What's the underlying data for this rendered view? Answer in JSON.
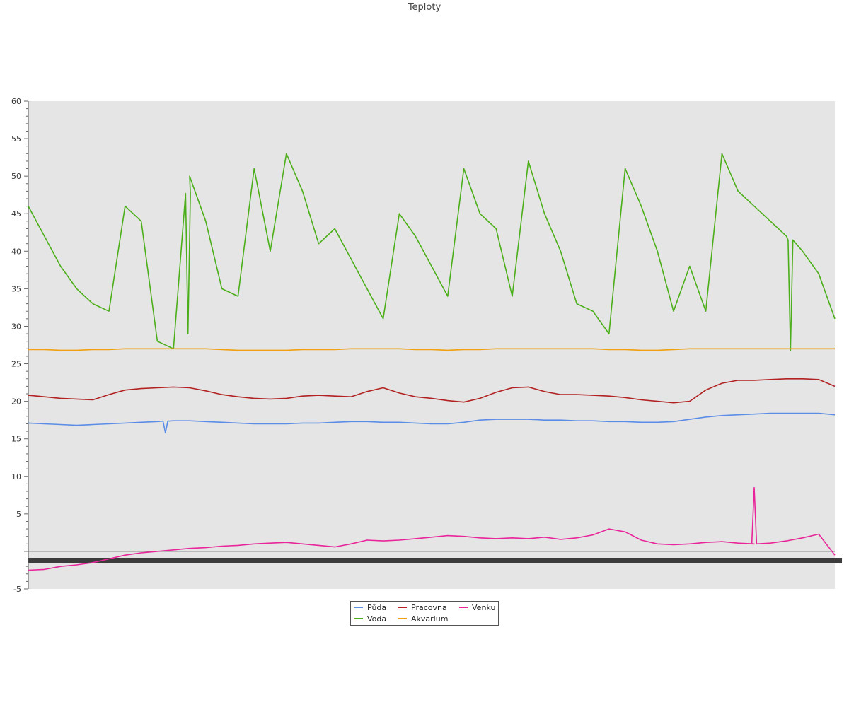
{
  "chart_data": {
    "type": "line",
    "title": "Teploty",
    "ylim": [
      -5,
      60
    ],
    "yticks": [
      -5,
      5,
      10,
      15,
      20,
      25,
      30,
      35,
      40,
      45,
      50,
      55,
      60
    ],
    "grid": false,
    "legend_placement": "bottom-center",
    "background_color": "#e5e5e5",
    "x": [
      0,
      2,
      4,
      6,
      8,
      10,
      12,
      14,
      16,
      18,
      20,
      22,
      24,
      26,
      28,
      30,
      32,
      34,
      36,
      38,
      40,
      42,
      44,
      46,
      48,
      50,
      52,
      54,
      56,
      58,
      60,
      62,
      64,
      66,
      68,
      70,
      72,
      74,
      76,
      78,
      80,
      82,
      84,
      86,
      88,
      90,
      92,
      94,
      96,
      98,
      100
    ],
    "series": [
      {
        "name": "Půda",
        "color": "#5b8de6",
        "values": [
          17.1,
          17.0,
          16.9,
          16.8,
          16.9,
          17.0,
          17.1,
          17.2,
          17.3,
          17.4,
          17.4,
          17.3,
          17.2,
          17.1,
          17.0,
          17.0,
          17.0,
          17.1,
          17.1,
          17.2,
          17.3,
          17.3,
          17.2,
          17.2,
          17.1,
          17.0,
          17.0,
          17.2,
          17.5,
          17.6,
          17.6,
          17.6,
          17.5,
          17.5,
          17.4,
          17.4,
          17.3,
          17.3,
          17.2,
          17.2,
          17.3,
          17.6,
          17.9,
          18.1,
          18.2,
          18.3,
          18.4,
          18.4,
          18.4,
          18.4,
          18.2
        ]
      },
      {
        "name": "Voda",
        "color": "#4caf1a",
        "values": [
          46,
          42,
          38,
          35,
          33,
          32,
          46,
          44,
          28,
          27,
          50,
          44,
          35,
          34,
          51,
          40,
          53,
          48,
          41,
          43,
          39,
          35,
          31,
          45,
          42,
          38,
          34,
          51,
          45,
          43,
          34,
          52,
          45,
          40,
          33,
          32,
          29,
          51,
          46,
          40,
          32,
          38,
          32,
          53,
          48,
          46,
          44,
          42,
          40,
          37,
          31
        ]
      },
      {
        "name": "Pracovna",
        "color": "#b22222",
        "values": [
          20.8,
          20.6,
          20.4,
          20.3,
          20.2,
          20.9,
          21.5,
          21.7,
          21.8,
          21.9,
          21.8,
          21.4,
          20.9,
          20.6,
          20.4,
          20.3,
          20.4,
          20.7,
          20.8,
          20.7,
          20.6,
          21.3,
          21.8,
          21.1,
          20.6,
          20.4,
          20.1,
          19.9,
          20.4,
          21.2,
          21.8,
          21.9,
          21.3,
          20.9,
          20.9,
          20.8,
          20.7,
          20.5,
          20.2,
          20.0,
          19.8,
          20.0,
          21.5,
          22.4,
          22.8,
          22.8,
          22.9,
          23.0,
          23.0,
          22.9,
          22.0
        ]
      },
      {
        "name": "Akvarium",
        "color": "#f0a010",
        "values": [
          26.9,
          26.9,
          26.8,
          26.8,
          26.9,
          26.9,
          27.0,
          27.0,
          27.0,
          27.0,
          27.0,
          27.0,
          26.9,
          26.8,
          26.8,
          26.8,
          26.8,
          26.9,
          26.9,
          26.9,
          27.0,
          27.0,
          27.0,
          27.0,
          26.9,
          26.9,
          26.8,
          26.9,
          26.9,
          27.0,
          27.0,
          27.0,
          27.0,
          27.0,
          27.0,
          27.0,
          26.9,
          26.9,
          26.8,
          26.8,
          26.9,
          27.0,
          27.0,
          27.0,
          27.0,
          27.0,
          27.0,
          27.0,
          27.0,
          27.0,
          27.0
        ]
      },
      {
        "name": "Venku",
        "color": "#e8259a",
        "values": [
          -2.5,
          -2.4,
          -2.0,
          -1.8,
          -1.5,
          -1.0,
          -0.5,
          -0.2,
          0.0,
          0.2,
          0.4,
          0.5,
          0.7,
          0.8,
          1.0,
          1.1,
          1.2,
          1.0,
          0.8,
          0.6,
          1.0,
          1.5,
          1.4,
          1.5,
          1.7,
          1.9,
          2.1,
          2.0,
          1.8,
          1.7,
          1.8,
          1.7,
          1.9,
          1.6,
          1.8,
          2.2,
          3.0,
          2.6,
          1.5,
          1.0,
          0.9,
          1.0,
          1.2,
          1.3,
          1.1,
          1.0,
          1.1,
          1.4,
          1.8,
          2.3,
          -0.5
        ]
      }
    ],
    "spikes": [
      {
        "series": "Venku",
        "x": 90.0,
        "value": 8.5
      },
      {
        "series": "Voda",
        "x": 94.5,
        "value": 26.8
      },
      {
        "series": "Voda",
        "x": 19.8,
        "value": 29.0
      },
      {
        "series": "Půda",
        "x": 17.0,
        "value": 15.8
      }
    ]
  }
}
